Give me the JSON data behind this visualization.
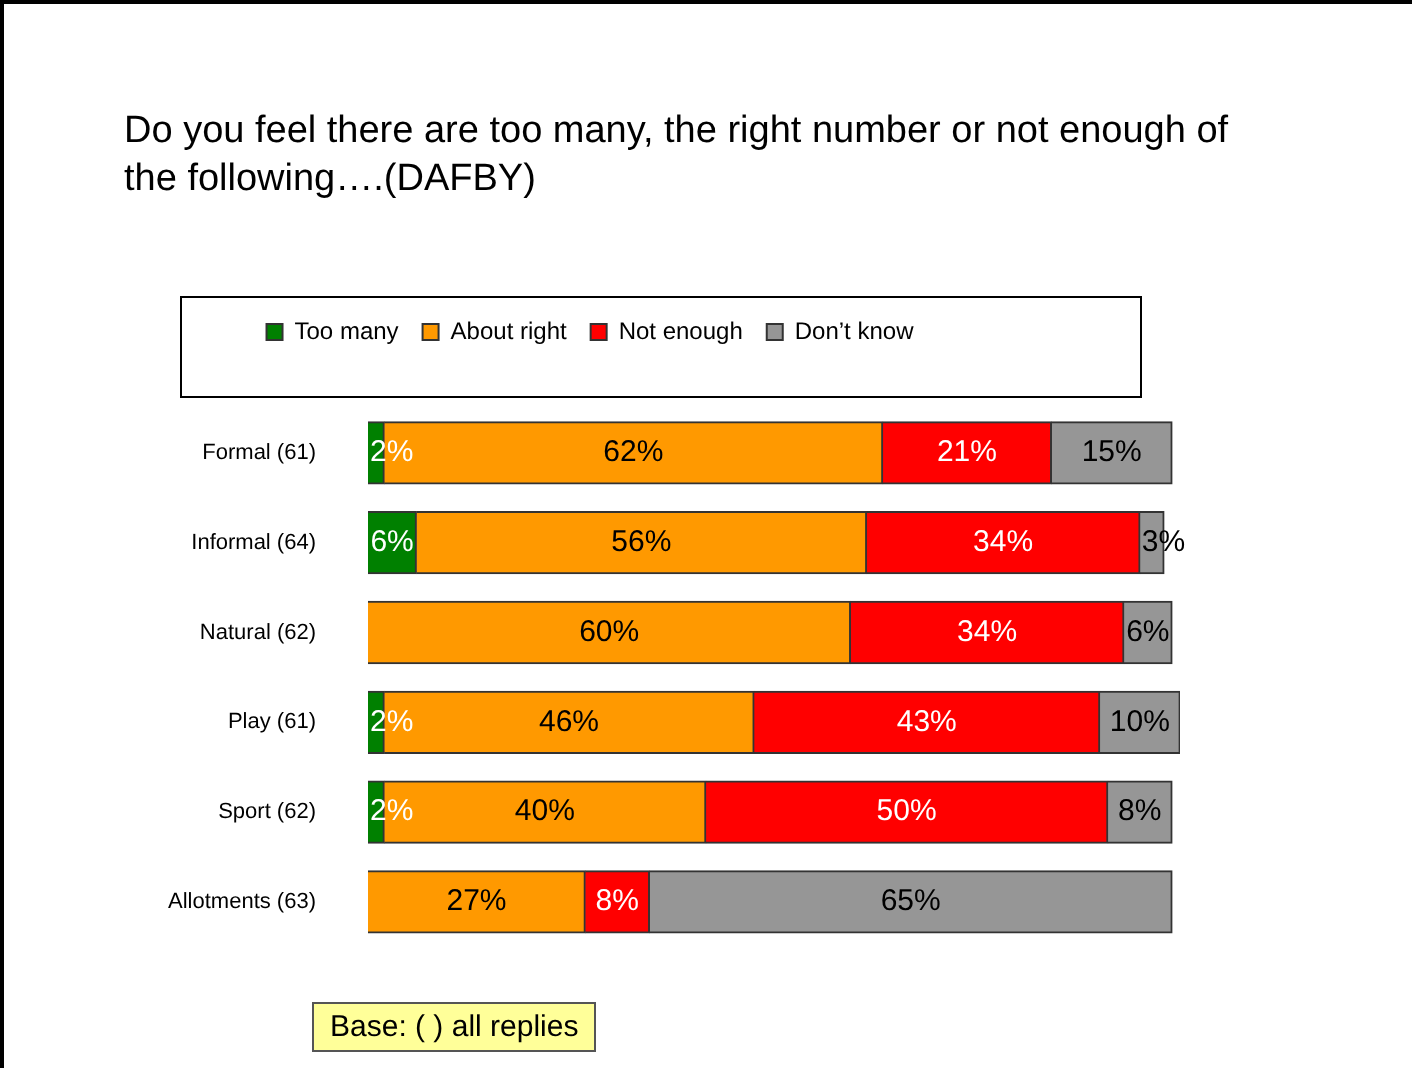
{
  "chart_data": {
    "type": "bar",
    "orientation": "horizontal",
    "stacked": true,
    "title": "Do you feel there are too many, the right number or not enough of the following….(DAFBY)",
    "categories": [
      "Formal (61)",
      "Informal (64)",
      "Natural (62)",
      "Play (61)",
      "Sport (62)",
      "Allotments (63)"
    ],
    "series": [
      {
        "name": "Too many",
        "color": "#008000",
        "values": [
          2,
          6,
          null,
          2,
          2,
          null
        ],
        "value_labels": [
          "2%",
          "6%",
          null,
          "2%",
          "2%",
          null
        ]
      },
      {
        "name": "About right",
        "color": "#ff9900",
        "values": [
          62,
          56,
          60,
          46,
          40,
          27
        ],
        "value_labels": [
          "62%",
          "56%",
          "60%",
          "46%",
          "40%",
          "27%"
        ]
      },
      {
        "name": "Not enough",
        "color": "#ff0000",
        "values": [
          21,
          34,
          34,
          43,
          50,
          8
        ],
        "value_labels": [
          "21%",
          "34%",
          "34%",
          "43%",
          "50%",
          "8%"
        ]
      },
      {
        "name": "Don’t know",
        "color": "#969696",
        "values": [
          15,
          3,
          6,
          10,
          8,
          65
        ],
        "value_labels": [
          "15%",
          "3%",
          "6%",
          "10%",
          "8%",
          "65%"
        ]
      }
    ],
    "legend": "top",
    "annotations": [
      "Base: ( ) all replies"
    ]
  }
}
